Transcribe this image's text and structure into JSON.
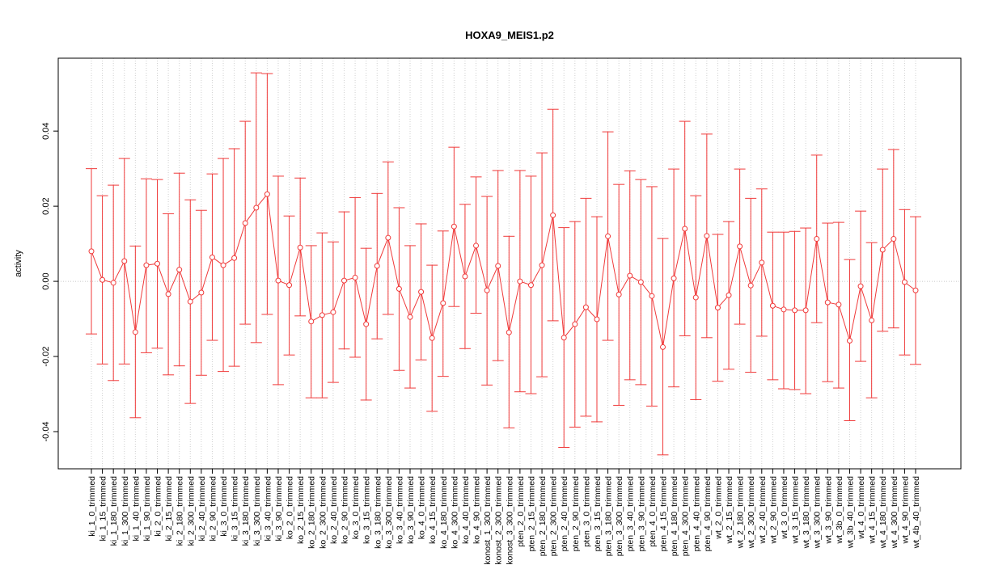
{
  "chart_data": {
    "type": "line",
    "title": "HOXA9_MEIS1.p2",
    "y_label": "activity",
    "categories": [
      "ki_1_0_trimmed",
      "ki_1_15_trimmed",
      "ki_1_180_trimmed",
      "ki_1_300_trimmed",
      "ki_1_40_trimmed",
      "ki_1_90_trimmed",
      "ki_2_0_trimmed",
      "ki_2_15_trimmed",
      "ki_2_180_trimmed",
      "ki_2_300_trimmed",
      "ki_2_40_trimmed",
      "ki_2_90_trimmed",
      "ki_3_0_trimmed",
      "ki_3_15_trimmed",
      "ki_3_180_trimmed",
      "ki_3_300_trimmed",
      "ki_3_40_trimmed",
      "ki_3_90_trimmed",
      "ko_2_0_trimmed",
      "ko_2_15_trimmed",
      "ko_2_180_trimmed",
      "ko_2_300_trimmed",
      "ko_2_40_trimmed",
      "ko_2_90_trimmed",
      "ko_3_0_trimmed",
      "ko_3_15_trimmed",
      "ko_3_180_trimmed",
      "ko_3_300_trimmed",
      "ko_3_40_trimmed",
      "ko_3_90_trimmed",
      "ko_4_0_trimmed",
      "ko_4_15_trimmed",
      "ko_4_180_trimmed",
      "ko_4_300_trimmed",
      "ko_4_40_trimmed",
      "ko_4_90_trimmed",
      "konost_1_300_trimmed",
      "konost_2_300_trimmed",
      "konost_3_300_trimmed",
      "pten_2_0_trimmed",
      "pten_2_15_trimmed",
      "pten_2_180_trimmed",
      "pten_2_300_trimmed",
      "pten_2_40_trimmed",
      "pten_2_90_trimmed",
      "pten_3_0_trimmed",
      "pten_3_15_trimmed",
      "pten_3_180_trimmed",
      "pten_3_300_trimmed",
      "pten_3_40_trimmed",
      "pten_3_90_trimmed",
      "pten_4_0_trimmed",
      "pten_4_15_trimmed",
      "pten_4_180_trimmed",
      "pten_4_300_trimmed",
      "pten_4_40_trimmed",
      "pten_4_90_trimmed",
      "wt_2_0_trimmed",
      "wt_2_15_trimmed",
      "wt_2_180_trimmed",
      "wt_2_300_trimmed",
      "wt_2_40_trimmed",
      "wt_2_90_trimmed",
      "wt_3_0_trimmed",
      "wt_3_15_trimmed",
      "wt_3_180_trimmed",
      "wt_3_300_trimmed",
      "wt_3_90_trimmed",
      "wt_3b_0_trimmed",
      "wt_3b_40_trimmed",
      "wt_4_0_trimmed",
      "wt_4_15_trimmed",
      "wt_4_180_trimmed",
      "wt_4_300_trimmed",
      "wt_4_90_trimmed",
      "wt_4b_40_trimmed"
    ],
    "values": [
      0.008,
      0.0004,
      -0.0004,
      0.0054,
      -0.0135,
      0.0043,
      0.0047,
      -0.0034,
      0.0031,
      -0.0054,
      -0.003,
      0.0064,
      0.0043,
      0.0062,
      0.0155,
      0.0196,
      0.0232,
      0.0002,
      -0.001,
      0.009,
      -0.0107,
      -0.009,
      -0.0082,
      0.0002,
      0.001,
      -0.0114,
      0.0041,
      0.0116,
      -0.002,
      -0.0095,
      -0.0028,
      -0.0151,
      -0.0058,
      0.0146,
      0.0013,
      0.0095,
      -0.0024,
      0.0041,
      -0.0136,
      0.0,
      -0.001,
      0.0043,
      0.0176,
      -0.015,
      -0.0114,
      -0.0069,
      -0.0101,
      0.012,
      -0.0035,
      0.0015,
      -0.0002,
      -0.0039,
      -0.0175,
      0.0008,
      0.014,
      -0.0043,
      0.0121,
      -0.007,
      -0.0037,
      0.0093,
      -0.0011,
      0.005,
      -0.0065,
      -0.0075,
      -0.0077,
      -0.0077,
      0.0113,
      -0.0056,
      -0.0062,
      -0.0158,
      -0.0013,
      -0.0104,
      0.0084,
      0.0113,
      -0.0002,
      -0.0024
    ],
    "upper": [
      0.03,
      0.0228,
      0.0256,
      0.0327,
      0.0094,
      0.0273,
      0.0271,
      0.018,
      0.0288,
      0.0217,
      0.0189,
      0.0286,
      0.0327,
      0.0353,
      0.0426,
      0.0555,
      0.0553,
      0.028,
      0.0174,
      0.0275,
      0.0095,
      0.0129,
      0.0105,
      0.0185,
      0.0223,
      0.0088,
      0.0234,
      0.0318,
      0.0196,
      0.0095,
      0.0153,
      0.0043,
      0.0134,
      0.0357,
      0.0205,
      0.0278,
      0.0226,
      0.0295,
      0.012,
      0.0295,
      0.028,
      0.0342,
      0.0458,
      0.0143,
      0.0159,
      0.0221,
      0.0172,
      0.0398,
      0.0258,
      0.0294,
      0.0271,
      0.0252,
      0.0114,
      0.0299,
      0.0426,
      0.0228,
      0.0392,
      0.0125,
      0.0159,
      0.0299,
      0.0221,
      0.0246,
      0.0131,
      0.0131,
      0.0133,
      0.0142,
      0.0336,
      0.0155,
      0.0157,
      0.0058,
      0.0187,
      0.0103,
      0.0299,
      0.0351,
      0.0191,
      0.0172
    ],
    "lower": [
      -0.014,
      -0.022,
      -0.0264,
      -0.022,
      -0.0363,
      -0.019,
      -0.0178,
      -0.0249,
      -0.0225,
      -0.0325,
      -0.025,
      -0.0157,
      -0.024,
      -0.0226,
      -0.0114,
      -0.0163,
      -0.0088,
      -0.0275,
      -0.0196,
      -0.0092,
      -0.031,
      -0.031,
      -0.0269,
      -0.018,
      -0.0202,
      -0.0316,
      -0.0153,
      -0.0088,
      -0.0237,
      -0.0284,
      -0.0209,
      -0.0346,
      -0.0253,
      -0.0067,
      -0.0179,
      -0.0085,
      -0.0276,
      -0.0211,
      -0.039,
      -0.0294,
      -0.0299,
      -0.0254,
      -0.0105,
      -0.0442,
      -0.0388,
      -0.0359,
      -0.0374,
      -0.0157,
      -0.033,
      -0.0262,
      -0.0275,
      -0.0332,
      -0.0462,
      -0.0281,
      -0.0145,
      -0.0315,
      -0.015,
      -0.0266,
      -0.0234,
      -0.0114,
      -0.0242,
      -0.0146,
      -0.0262,
      -0.0286,
      -0.0288,
      -0.0299,
      -0.011,
      -0.0267,
      -0.0284,
      -0.0371,
      -0.0213,
      -0.031,
      -0.0133,
      -0.0124,
      -0.0196,
      -0.0221
    ],
    "color": "#f03a3a",
    "ylim": [
      -0.0499,
      0.0594
    ],
    "yticks": [
      -0.04,
      -0.02,
      {
        "value": 0,
        "label": "0.00"
      },
      0.02,
      0.04
    ],
    "reference_line": 0,
    "grid": "x"
  }
}
